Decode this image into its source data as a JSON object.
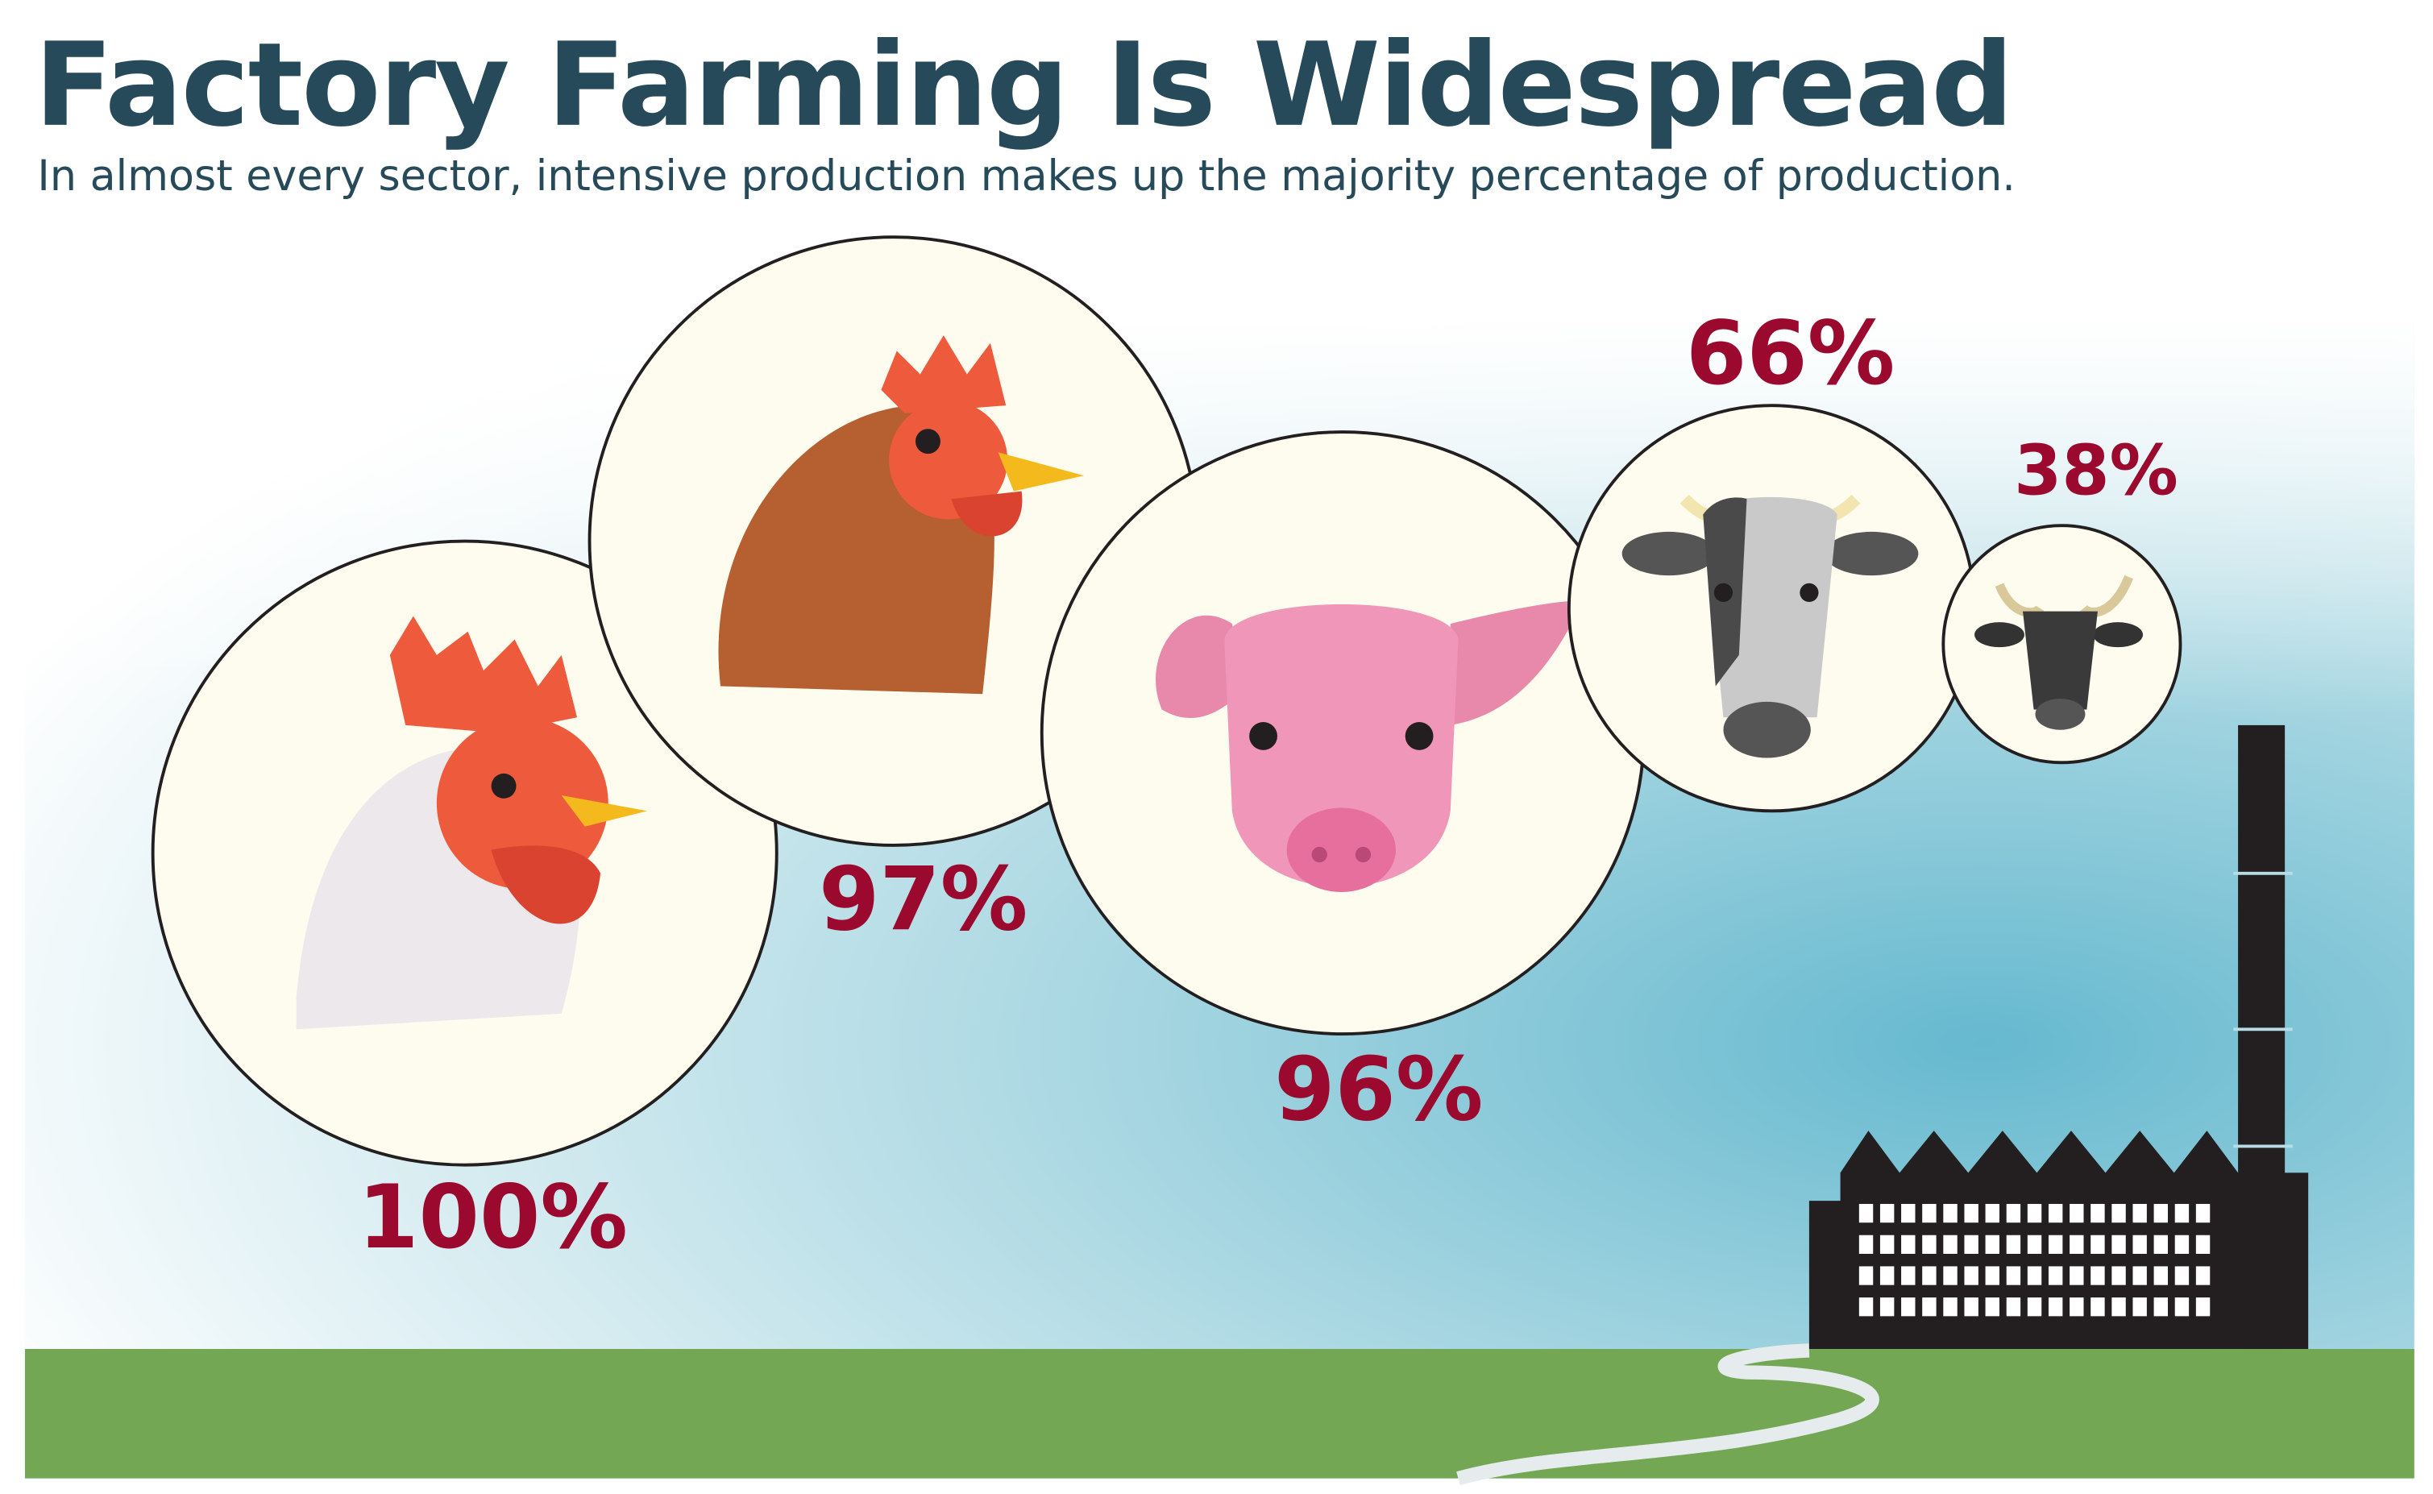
{
  "header": {
    "title": "Factory Farming Is Widespread",
    "subtitle": "In almost every sector, intensive production makes up the majority percentage of production."
  },
  "items": [
    {
      "label": "100%"
    },
    {
      "label": "97%"
    },
    {
      "label": "96%"
    },
    {
      "label": "66%"
    },
    {
      "label": "38%"
    }
  ]
}
